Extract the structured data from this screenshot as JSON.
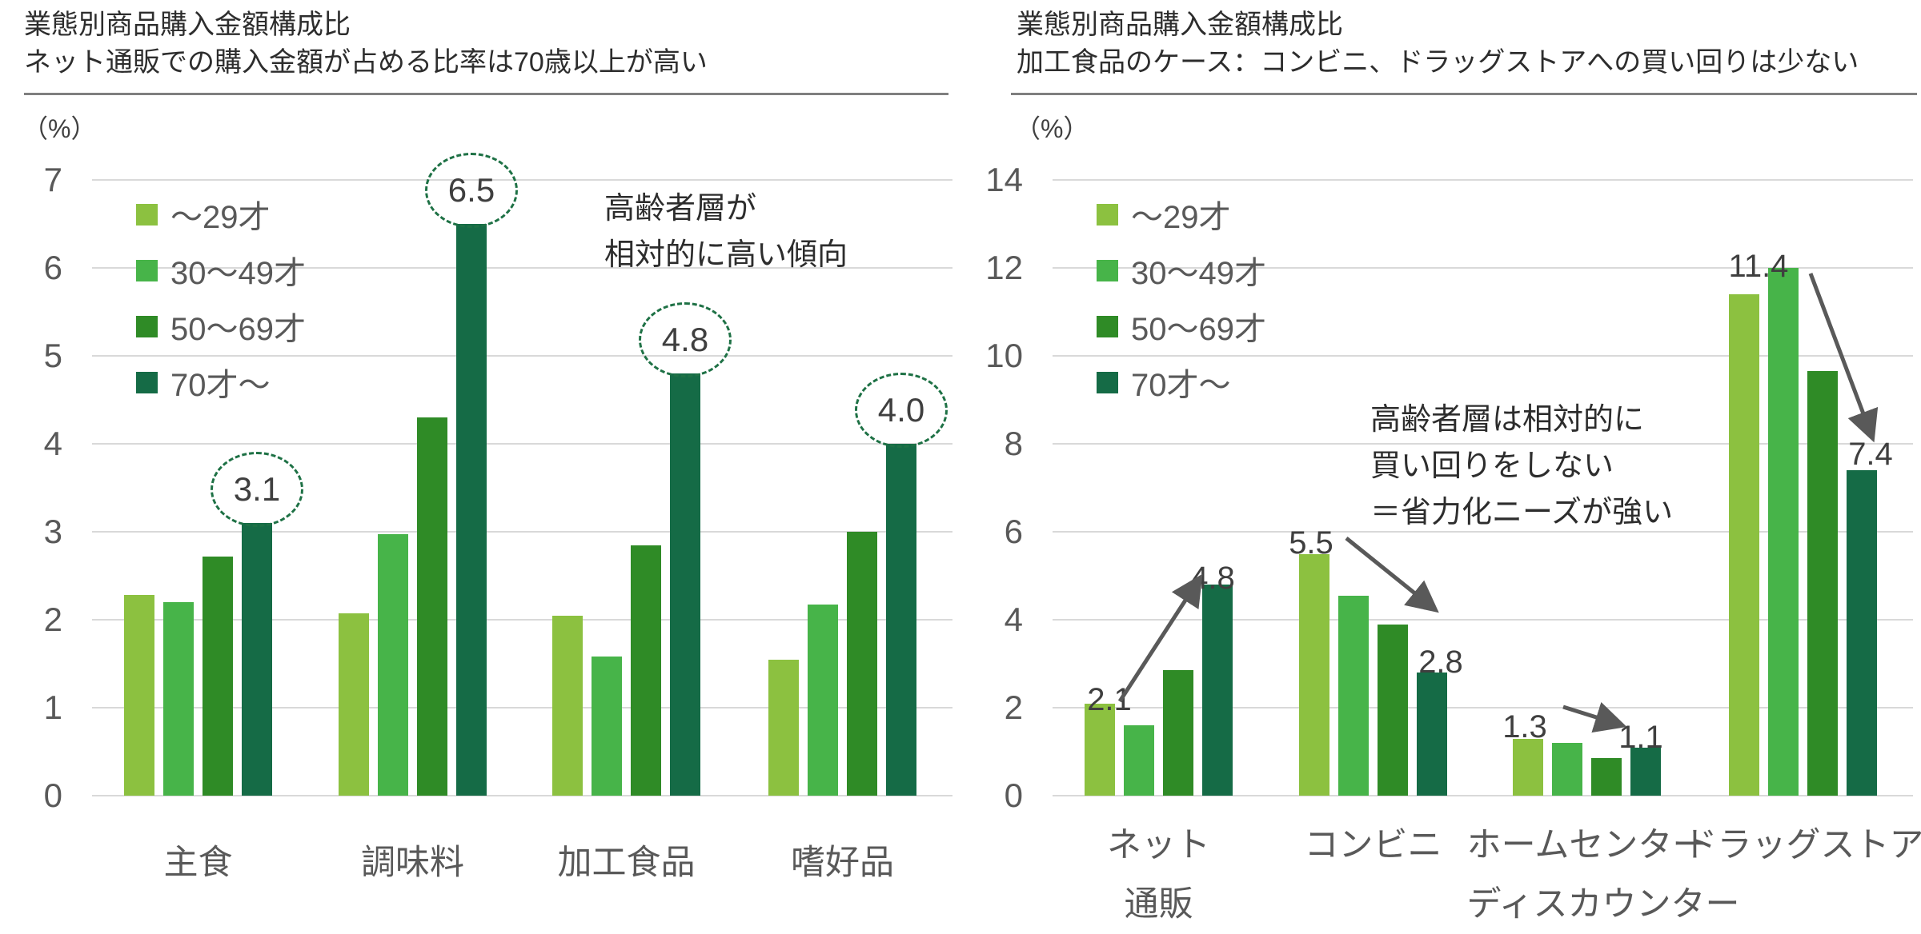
{
  "colors": {
    "series": [
      "#8CC140",
      "#47B449",
      "#2F8B26",
      "#156B46"
    ],
    "grid": "#D9D9D9",
    "axis_text": "#595959",
    "title_text": "#2D2D2D",
    "rule": "#7F7F7F",
    "data_label": "#3F3F3F",
    "arrow": "#595959",
    "dashed_circle": "#1E7145",
    "background": "#FFFFFF"
  },
  "legend_labels": [
    "〜29才",
    "30〜49才",
    "50〜69才",
    "70才〜"
  ],
  "chart_data": [
    {
      "type": "bar",
      "title": "業態別商品購入金額構成比",
      "subtitle": "ネット通販での購入金額が占める比率は70歳以上が高い",
      "unit": "（%）",
      "ylabel": "（%）",
      "ylim": [
        0,
        7
      ],
      "ytick_step": 1,
      "ytick_labels": [
        "0",
        "1",
        "2",
        "3",
        "4",
        "5",
        "6",
        "7"
      ],
      "grid": "on",
      "legend_position": "top-left",
      "categories": [
        "主食",
        "調味料",
        "加工食品",
        "嗜好品"
      ],
      "series": [
        {
          "name": "〜29才",
          "values": [
            2.28,
            2.07,
            2.05,
            1.55
          ]
        },
        {
          "name": "30〜49才",
          "values": [
            2.2,
            2.97,
            1.58,
            2.17
          ]
        },
        {
          "name": "50〜69才",
          "values": [
            2.72,
            4.3,
            2.85,
            3.0
          ]
        },
        {
          "name": "70才〜",
          "values": [
            3.1,
            6.5,
            4.8,
            4.0
          ]
        }
      ],
      "circled_labels": [
        {
          "category": "主食",
          "series": "70才〜",
          "g": 0,
          "text": "3.1"
        },
        {
          "category": "調味料",
          "series": "70才〜",
          "g": 1,
          "text": "6.5"
        },
        {
          "category": "加工食品",
          "series": "70才〜",
          "g": 2,
          "text": "4.8"
        },
        {
          "category": "嗜好品",
          "series": "70才〜",
          "g": 3,
          "text": "4.0"
        }
      ],
      "annotation": [
        "高齢者層が",
        "相対的に高い傾向"
      ]
    },
    {
      "type": "bar",
      "title": "業態別商品購入金額構成比",
      "subtitle": "加工食品のケース：コンビニ、ドラッグストアへの買い回りは少ない",
      "unit": "（%）",
      "ylabel": "（%）",
      "ylim": [
        0,
        14
      ],
      "ytick_step": 2,
      "ytick_labels": [
        "0",
        "2",
        "4",
        "6",
        "8",
        "10",
        "12",
        "14"
      ],
      "grid": "on",
      "legend_position": "top-left",
      "categories": [
        [
          "ネット",
          "通販"
        ],
        [
          "コンビニ"
        ],
        [
          "ホームセンター",
          "ディスカウンター"
        ],
        [
          "ドラッグストア"
        ]
      ],
      "series": [
        {
          "name": "〜29才",
          "values": [
            2.1,
            5.5,
            1.3,
            11.4
          ]
        },
        {
          "name": "30〜49才",
          "values": [
            1.6,
            4.55,
            1.2,
            12.0
          ]
        },
        {
          "name": "50〜69才",
          "values": [
            2.85,
            3.9,
            0.85,
            9.65
          ]
        },
        {
          "name": "70才〜",
          "values": [
            4.8,
            2.8,
            1.1,
            7.4
          ]
        }
      ],
      "data_labels": [
        {
          "g": 0,
          "s": 0,
          "text": "2.1"
        },
        {
          "g": 0,
          "s": 3,
          "text": "4.8"
        },
        {
          "g": 1,
          "s": 0,
          "text": "5.5"
        },
        {
          "g": 1,
          "s": 3,
          "text": "2.8"
        },
        {
          "g": 2,
          "s": 0,
          "text": "1.3"
        },
        {
          "g": 2,
          "s": 3,
          "text": "1.1"
        },
        {
          "g": 3,
          "s": 0,
          "text": "11.4"
        },
        {
          "g": 3,
          "s": 3,
          "text": "7.4"
        }
      ],
      "trend_arrows": [
        {
          "category": "ネット通販",
          "from": "〜29才",
          "to": "70才〜",
          "direction": "up"
        },
        {
          "category": "コンビニ",
          "from": "〜29才",
          "to": "70才〜",
          "direction": "down"
        },
        {
          "category": "ホームセンター・ディスカウンター",
          "from": "〜29才",
          "to": "70才〜",
          "direction": "down"
        },
        {
          "category": "ドラッグストア",
          "from": "30〜49才",
          "to": "70才〜",
          "direction": "down"
        }
      ],
      "annotation": [
        "高齢者層は相対的に",
        "買い回りをしない",
        "＝省力化ニーズが強い"
      ]
    }
  ]
}
